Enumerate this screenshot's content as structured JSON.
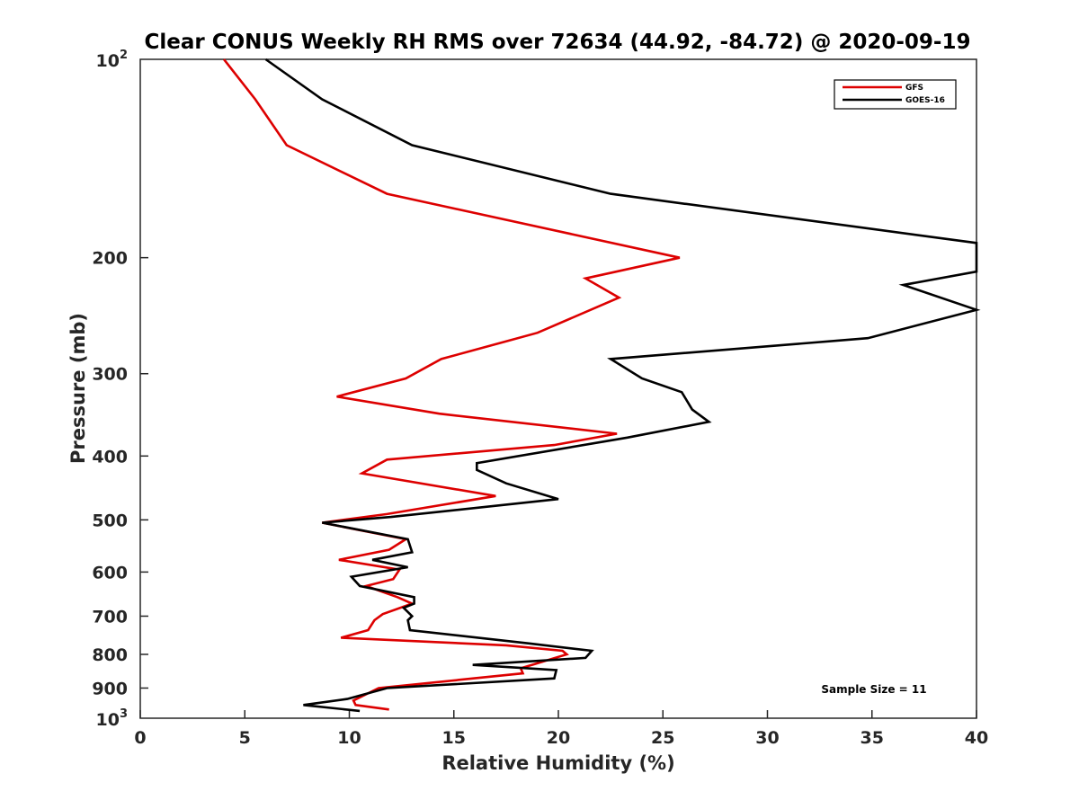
{
  "chart_data": {
    "type": "line",
    "title": "Clear CONUS Weekly RH RMS over 72634 (44.92, -84.72) @ 2020-09-19",
    "xlabel": "Relative Humidity (%)",
    "ylabel": "Pressure (mb)",
    "xlim": [
      0,
      40
    ],
    "ylim": [
      100,
      1000
    ],
    "y_scale": "log",
    "y_reversed": true,
    "x_ticks": [
      0,
      5,
      10,
      15,
      20,
      25,
      30,
      35,
      40
    ],
    "x_tick_labels": [
      "0",
      "5",
      "10",
      "15",
      "20",
      "25",
      "30",
      "35",
      "40"
    ],
    "y_ticks": [
      200,
      300,
      400,
      500,
      600,
      700,
      800,
      900
    ],
    "y_tick_labels": [
      "200",
      "300",
      "400",
      "500",
      "600",
      "700",
      "800",
      "900"
    ],
    "y_tick_top": {
      "base": "10",
      "exp": "2",
      "value": 100
    },
    "y_tick_bottom": {
      "base": "10",
      "exp": "3",
      "value": 1000
    },
    "grid": false,
    "legend_position": "top-right",
    "annotation": "Sample Size = 11",
    "series": [
      {
        "name": "GFS",
        "color": "#dd0000",
        "points": [
          [
            4.0,
            100
          ],
          [
            5.5,
            115
          ],
          [
            7.0,
            135
          ],
          [
            11.8,
            160
          ],
          [
            25.8,
            200
          ],
          [
            21.3,
            215
          ],
          [
            22.9,
            230
          ],
          [
            19.0,
            260
          ],
          [
            14.4,
            285
          ],
          [
            12.7,
            305
          ],
          [
            9.4,
            325
          ],
          [
            14.3,
            345
          ],
          [
            22.8,
            370
          ],
          [
            19.8,
            385
          ],
          [
            11.8,
            405
          ],
          [
            10.6,
            425
          ],
          [
            17.0,
            460
          ],
          [
            11.8,
            490
          ],
          [
            8.7,
            505
          ],
          [
            12.7,
            535
          ],
          [
            11.9,
            555
          ],
          [
            9.5,
            575
          ],
          [
            12.4,
            595
          ],
          [
            12.1,
            615
          ],
          [
            10.8,
            630
          ],
          [
            12.3,
            655
          ],
          [
            13.0,
            670
          ],
          [
            11.6,
            695
          ],
          [
            11.2,
            710
          ],
          [
            10.9,
            735
          ],
          [
            9.6,
            755
          ],
          [
            17.5,
            775
          ],
          [
            20.2,
            790
          ],
          [
            20.4,
            800
          ],
          [
            18.2,
            840
          ],
          [
            18.3,
            855
          ],
          [
            11.4,
            900
          ],
          [
            10.2,
            940
          ],
          [
            10.3,
            955
          ],
          [
            11.9,
            970
          ]
        ]
      },
      {
        "name": "GOES-16",
        "color": "#000000",
        "points": [
          [
            6.0,
            100
          ],
          [
            8.7,
            115
          ],
          [
            13.0,
            135
          ],
          [
            22.5,
            160
          ],
          [
            40.0,
            190
          ],
          [
            40.0,
            210
          ],
          [
            36.5,
            220
          ],
          [
            40.0,
            240
          ],
          [
            34.8,
            265
          ],
          [
            22.5,
            285
          ],
          [
            24.0,
            305
          ],
          [
            25.9,
            320
          ],
          [
            26.4,
            340
          ],
          [
            27.2,
            355
          ],
          [
            23.3,
            375
          ],
          [
            16.1,
            410
          ],
          [
            16.1,
            420
          ],
          [
            17.5,
            440
          ],
          [
            20.0,
            465
          ],
          [
            12.0,
            495
          ],
          [
            8.7,
            505
          ],
          [
            12.8,
            535
          ],
          [
            13.0,
            560
          ],
          [
            11.1,
            575
          ],
          [
            12.8,
            590
          ],
          [
            10.1,
            610
          ],
          [
            10.5,
            630
          ],
          [
            13.1,
            655
          ],
          [
            13.1,
            670
          ],
          [
            12.6,
            680
          ],
          [
            13.0,
            700
          ],
          [
            12.8,
            710
          ],
          [
            12.9,
            735
          ],
          [
            18.6,
            770
          ],
          [
            21.6,
            790
          ],
          [
            21.3,
            810
          ],
          [
            15.9,
            830
          ],
          [
            19.9,
            845
          ],
          [
            19.8,
            870
          ],
          [
            11.8,
            900
          ],
          [
            9.9,
            935
          ],
          [
            7.8,
            955
          ],
          [
            10.5,
            975
          ]
        ]
      }
    ]
  }
}
